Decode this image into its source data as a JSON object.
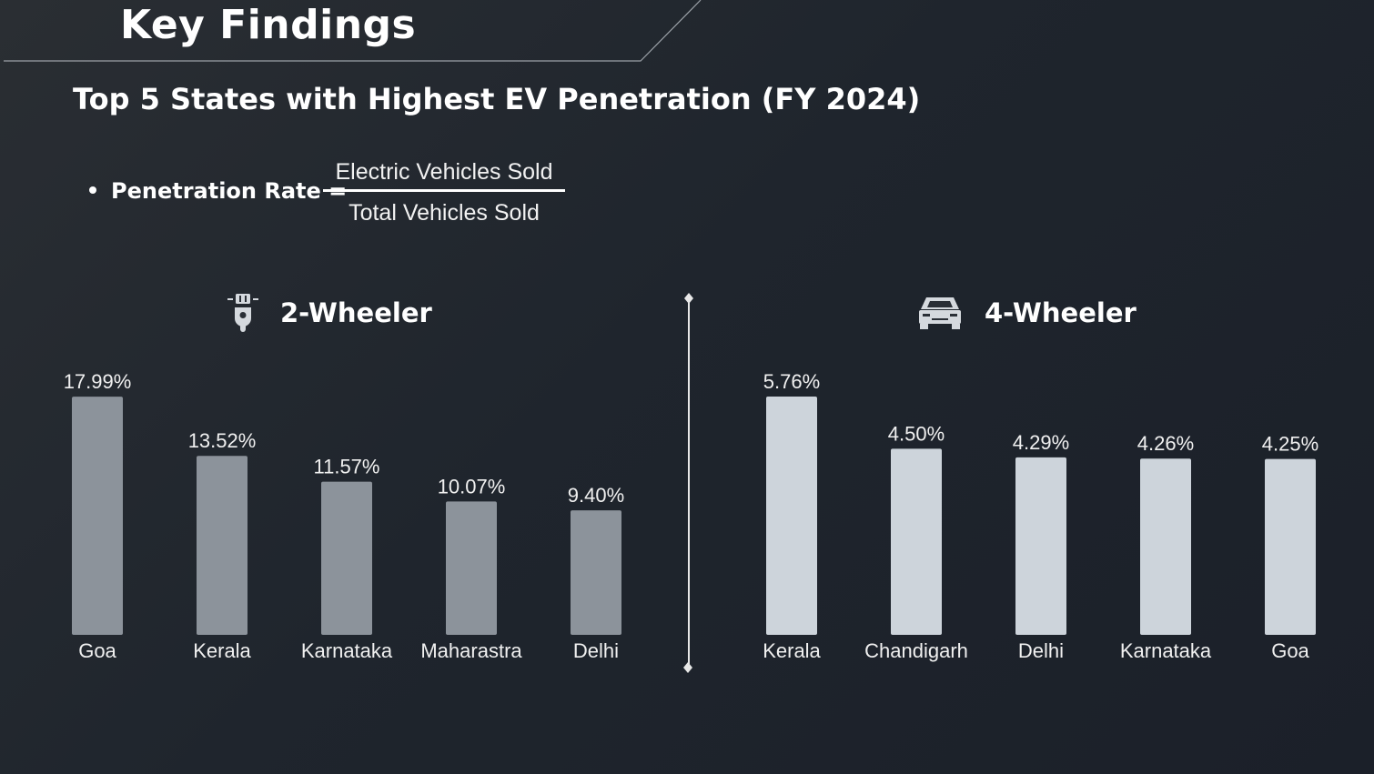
{
  "slide": {
    "title": "Key Findings",
    "subtitle": "Top 5 States with Highest EV Penetration (FY 2024)"
  },
  "formula": {
    "lhs": "Penetration Rate =",
    "numerator": "Electric Vehicles Sold",
    "denominator": "Total Vehicles Sold"
  },
  "icons": {
    "two_wheeler": "scooter-icon",
    "four_wheeler": "car-icon"
  },
  "colors": {
    "two_wheeler_bar": "#8c939b",
    "four_wheeler_bar": "#cdd4db"
  },
  "chart_data": [
    {
      "type": "bar",
      "title": "2-Wheeler",
      "categories": [
        "Goa",
        "Kerala",
        "Karnataka",
        "Maharastra",
        "Delhi"
      ],
      "values": [
        17.99,
        13.52,
        11.57,
        10.07,
        9.4
      ],
      "value_labels": [
        "17.99%",
        "13.52%",
        "11.57%",
        "10.07%",
        "9.40%"
      ],
      "unit": "%",
      "ylim": [
        0,
        18
      ]
    },
    {
      "type": "bar",
      "title": "4-Wheeler",
      "categories": [
        "Kerala",
        "Chandigarh",
        "Delhi",
        "Karnataka",
        "Goa"
      ],
      "values": [
        5.76,
        4.5,
        4.29,
        4.26,
        4.25
      ],
      "value_labels": [
        "5.76%",
        "4.50%",
        "4.29%",
        "4.26%",
        "4.25%"
      ],
      "unit": "%",
      "ylim": [
        0,
        5.76
      ]
    }
  ]
}
